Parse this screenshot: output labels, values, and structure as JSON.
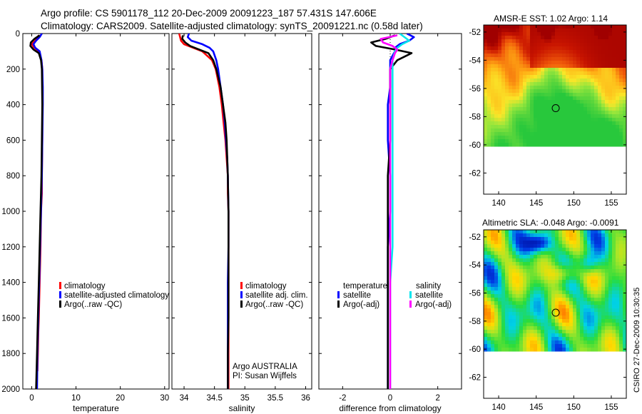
{
  "header": {
    "line1": "Argo profile: CS 5901178_112 20-Dec-2009 20091223_187 57.431S 147.606E",
    "line2": "Climatology: CARS2009. Satellite-adjusted climatology: synTS_20091221.nc (0.58d later)"
  },
  "colors": {
    "climatology": "#ff0000",
    "satellite": "#0000ff",
    "argo": "#000000",
    "salinity_satellite": "#00e5ee",
    "salinity_argo": "#ff00ff"
  },
  "chart_data": [
    {
      "type": "line",
      "id": "temperature",
      "xlabel": "temperature",
      "ylabel": "",
      "xlim": [
        -2,
        31
      ],
      "ylim": [
        2000,
        0
      ],
      "xticks": [
        0,
        10,
        20,
        30
      ],
      "xtick_labels": [
        "0",
        "10",
        "20",
        "30"
      ],
      "yticks": [
        0,
        200,
        400,
        600,
        800,
        1000,
        1200,
        1400,
        1600,
        1800,
        2000
      ],
      "ytick_labels": [
        "0",
        "200",
        "400",
        "600",
        "800",
        "1000",
        "1200",
        "1400",
        "1600",
        "1800",
        "2000"
      ],
      "legend": [
        "climatology",
        "satellite-adjusted climatology",
        "Argo(..raw -QC)"
      ],
      "series": [
        {
          "name": "climatology",
          "color": "#ff0000",
          "depth": [
            10,
            40,
            60,
            80,
            100,
            150,
            200,
            300,
            400,
            600,
            800,
            900,
            1000,
            1200,
            1400,
            1600,
            1680,
            1800,
            1900
          ],
          "values": [
            1.6,
            0.8,
            0.0,
            0.6,
            1.6,
            2.2,
            2.4,
            2.4,
            2.4,
            2.4,
            2.3,
            2.3,
            2.1,
            2.0,
            1.8,
            1.6,
            1.5,
            1.4,
            1.3
          ]
        },
        {
          "name": "satellite-adjusted climatology",
          "color": "#0000ff",
          "depth": [
            0,
            20,
            40,
            60,
            80,
            100,
            150,
            200,
            300,
            400,
            600,
            800,
            1000,
            1200,
            1400,
            1600,
            1800,
            2000
          ],
          "values": [
            2.3,
            1.8,
            1.0,
            0.4,
            0.8,
            1.8,
            2.2,
            2.4,
            2.5,
            2.5,
            2.4,
            2.3,
            2.1,
            1.9,
            1.7,
            1.5,
            1.3,
            1.2
          ]
        },
        {
          "name": "Argo(..raw -QC)",
          "color": "#000000",
          "depth": [
            10,
            30,
            50,
            70,
            90,
            110,
            150,
            200,
            400,
            600,
            800,
            1000,
            1200,
            1400,
            1600,
            1800,
            2000
          ],
          "values": [
            1.8,
            0.6,
            -0.2,
            -0.3,
            0.4,
            1.6,
            2.1,
            2.3,
            2.4,
            2.3,
            2.2,
            2.0,
            1.8,
            1.6,
            1.4,
            1.2,
            1.0
          ]
        }
      ]
    },
    {
      "type": "line",
      "id": "salinity",
      "xlabel": "salinity",
      "xlim": [
        33.8,
        36.1
      ],
      "ylim": [
        2000,
        0
      ],
      "xticks": [
        34,
        34.5,
        35,
        35.5,
        36
      ],
      "xtick_labels": [
        "34",
        "34.5",
        "35",
        "35.5",
        "36"
      ],
      "legend": [
        "climatology",
        "satellite adj. clim.",
        "Argo(..raw -QC)"
      ],
      "annotation": [
        "Argo AUSTRALIA",
        "PI: Susan Wijffels"
      ],
      "series": [
        {
          "name": "climatology",
          "color": "#ff0000",
          "depth": [
            0,
            40,
            60,
            80,
            100,
            150,
            200,
            300,
            400,
            500,
            600,
            700,
            800,
            900,
            1000,
            1200,
            1400,
            1600,
            1800,
            2000
          ],
          "values": [
            33.92,
            33.95,
            34.0,
            34.15,
            34.3,
            34.46,
            34.52,
            34.58,
            34.62,
            34.65,
            34.68,
            34.7,
            34.72,
            34.72,
            34.73,
            34.73,
            34.73,
            34.73,
            34.73,
            34.73
          ]
        },
        {
          "name": "satellite adj. clim.",
          "color": "#0000ff",
          "depth": [
            0,
            20,
            40,
            60,
            80,
            100,
            150,
            200,
            300,
            400,
            500,
            600,
            700,
            800,
            1000,
            1200,
            1400,
            1600,
            1800,
            2000
          ],
          "values": [
            34.08,
            34.06,
            34.12,
            34.3,
            34.42,
            34.48,
            34.53,
            34.56,
            34.6,
            34.64,
            34.67,
            34.69,
            34.71,
            34.72,
            34.73,
            34.73,
            34.72,
            34.72,
            34.72,
            34.72
          ]
        },
        {
          "name": "Argo(..raw -QC)",
          "color": "#000000",
          "depth": [
            10,
            30,
            50,
            70,
            90,
            110,
            150,
            200,
            300,
            400,
            500,
            600,
            800,
            1000,
            1200,
            1400,
            1600,
            1800,
            2000
          ],
          "values": [
            33.98,
            33.97,
            34.02,
            34.1,
            34.25,
            34.4,
            34.48,
            34.53,
            34.6,
            34.64,
            34.68,
            34.7,
            34.72,
            34.73,
            34.73,
            34.73,
            34.73,
            34.72,
            34.72
          ]
        }
      ]
    },
    {
      "type": "line",
      "id": "difference",
      "xlabel": "difference from climatology",
      "xlim": [
        -3,
        3
      ],
      "ylim": [
        2000,
        0
      ],
      "xticks": [
        -2,
        0,
        2
      ],
      "xtick_labels": [
        "-2",
        "0",
        "2"
      ],
      "legend_temperature_title": "temperature",
      "legend_salinity_title": "salinity",
      "legend_temperature": [
        "satellite",
        "Argo(-adj)"
      ],
      "legend_salinity": [
        "satellite",
        "Argo(-adj)"
      ],
      "series": [
        {
          "name": "temperature satellite",
          "color": "#0000ff",
          "depth": [
            0,
            20,
            40,
            60,
            80,
            100,
            150,
            200,
            300,
            400,
            600,
            800,
            1000,
            1200,
            1400,
            1600,
            1800,
            2000
          ],
          "values": [
            0.7,
            1.0,
            0.8,
            0.4,
            0.2,
            0.2,
            0.0,
            0.0,
            0.0,
            -0.1,
            -0.1,
            0.0,
            0.0,
            -0.1,
            -0.1,
            -0.1,
            -0.1,
            -0.1
          ]
        },
        {
          "name": "temperature Argo(-adj)",
          "color": "#000000",
          "depth": [
            10,
            30,
            50,
            70,
            90,
            110,
            150,
            200,
            400,
            600,
            800,
            1000,
            1200,
            1400,
            1600,
            1800,
            2000
          ],
          "values": [
            0.2,
            -0.2,
            -0.8,
            -0.6,
            0.2,
            0.9,
            0.3,
            0.0,
            0.0,
            0.0,
            -0.1,
            -0.1,
            -0.1,
            -0.1,
            -0.1,
            -0.1,
            -0.1
          ]
        },
        {
          "name": "salinity satellite",
          "color": "#00e5ee",
          "depth": [
            0,
            20,
            40,
            60,
            80,
            100,
            150,
            200,
            400,
            600,
            800,
            1000,
            1200,
            1400,
            1600,
            1800,
            2000
          ],
          "values": [
            0.4,
            0.6,
            0.8,
            0.5,
            0.3,
            0.2,
            0.1,
            0.1,
            0.1,
            0.1,
            0.1,
            0.1,
            0.1,
            0.0,
            0.0,
            0.0,
            0.0
          ]
        },
        {
          "name": "salinity Argo(-adj)",
          "color": "#ff00ff",
          "depth": [
            10,
            30,
            50,
            70,
            90,
            110,
            150,
            200,
            400,
            600,
            800,
            1000,
            1200,
            1400,
            1600,
            1800,
            2000
          ],
          "values": [
            0.3,
            -0.4,
            -0.3,
            0.1,
            0.3,
            0.2,
            0.1,
            0.0,
            0.0,
            0.0,
            0.0,
            0.0,
            0.0,
            0.0,
            0.0,
            0.0,
            0.0
          ]
        }
      ]
    },
    {
      "type": "heatmap",
      "id": "sst-map",
      "title": "AMSR-E SST: 1.02 Argo: 1.14",
      "xlim": [
        138,
        157
      ],
      "ylim": [
        -63.5,
        -51.5
      ],
      "xticks": [
        140,
        145,
        150,
        155
      ],
      "xtick_labels": [
        "140",
        "145",
        "150",
        "155"
      ],
      "yticks": [
        -52,
        -54,
        -56,
        -58,
        -60,
        -62
      ],
      "ytick_labels": [
        "-52",
        "-54",
        "-56",
        "-58",
        "-60",
        "-62"
      ],
      "data_lat_range": [
        -60,
        -51.5
      ],
      "marker": {
        "lon": 147.6,
        "lat": -57.4
      }
    },
    {
      "type": "heatmap",
      "id": "sla-map",
      "title": "Altimetric SLA: -0.048 Argo: -0.0091",
      "xlim": [
        138,
        157
      ],
      "ylim": [
        -63.5,
        -51.5
      ],
      "xticks": [
        140,
        145,
        150,
        155
      ],
      "xtick_labels": [
        "140",
        "145",
        "150",
        "155"
      ],
      "yticks": [
        -52,
        -54,
        -56,
        -58,
        -60,
        -62
      ],
      "ytick_labels": [
        "-52",
        "-54",
        "-56",
        "-58",
        "-60",
        "-62"
      ],
      "data_lat_range": [
        -60,
        -51.5
      ],
      "marker": {
        "lon": 147.6,
        "lat": -57.4
      }
    }
  ],
  "signature": "CSIRO 27-Dec-2009 10:30:35"
}
